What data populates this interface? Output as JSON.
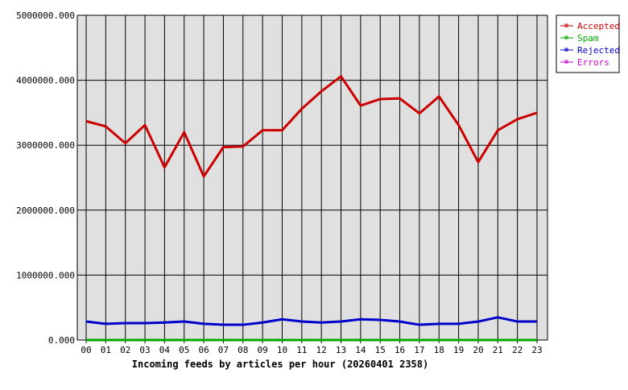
{
  "chart_data": {
    "type": "line",
    "title": "",
    "xlabel": "Incoming feeds by articles per hour (20260401 2358)",
    "ylabel": "",
    "categories": [
      "00",
      "01",
      "02",
      "03",
      "04",
      "05",
      "06",
      "07",
      "08",
      "09",
      "10",
      "11",
      "12",
      "13",
      "14",
      "15",
      "16",
      "17",
      "18",
      "19",
      "20",
      "21",
      "22",
      "23"
    ],
    "ylim": [
      0,
      5000000
    ],
    "yticks": [
      "0.000",
      "1000000.000",
      "2000000.000",
      "3000000.000",
      "4000000.000",
      "5000000.000"
    ],
    "ytick_values": [
      0,
      1000000,
      2000000,
      3000000,
      4000000,
      5000000
    ],
    "grid": true,
    "legend": "top-right",
    "background": "#e0e0e0",
    "series": [
      {
        "name": "Accepted",
        "color": "#cc0000",
        "values": [
          3370000,
          3290000,
          3030000,
          3310000,
          2660000,
          3200000,
          2520000,
          2970000,
          2980000,
          3230000,
          3230000,
          3560000,
          3830000,
          4060000,
          3610000,
          3710000,
          3720000,
          3490000,
          3750000,
          3310000,
          2740000,
          3230000,
          3400000,
          3500000
        ]
      },
      {
        "name": "Spam",
        "color": "#00aa00",
        "values": [
          0,
          0,
          0,
          0,
          0,
          0,
          0,
          0,
          0,
          0,
          0,
          0,
          0,
          0,
          0,
          0,
          0,
          0,
          0,
          0,
          0,
          0,
          0,
          0
        ]
      },
      {
        "name": "Rejected",
        "color": "#0000cc",
        "values": [
          285000,
          250000,
          260000,
          260000,
          270000,
          285000,
          250000,
          235000,
          235000,
          270000,
          320000,
          285000,
          270000,
          285000,
          320000,
          310000,
          285000,
          235000,
          250000,
          250000,
          285000,
          350000,
          285000,
          285000
        ]
      },
      {
        "name": "Errors",
        "color": "#cc00cc",
        "values": [
          0,
          0,
          0,
          0,
          0,
          0,
          0,
          0,
          0,
          0,
          0,
          0,
          0,
          0,
          0,
          0,
          0,
          0,
          0,
          0,
          0,
          0,
          0,
          0
        ]
      }
    ]
  }
}
